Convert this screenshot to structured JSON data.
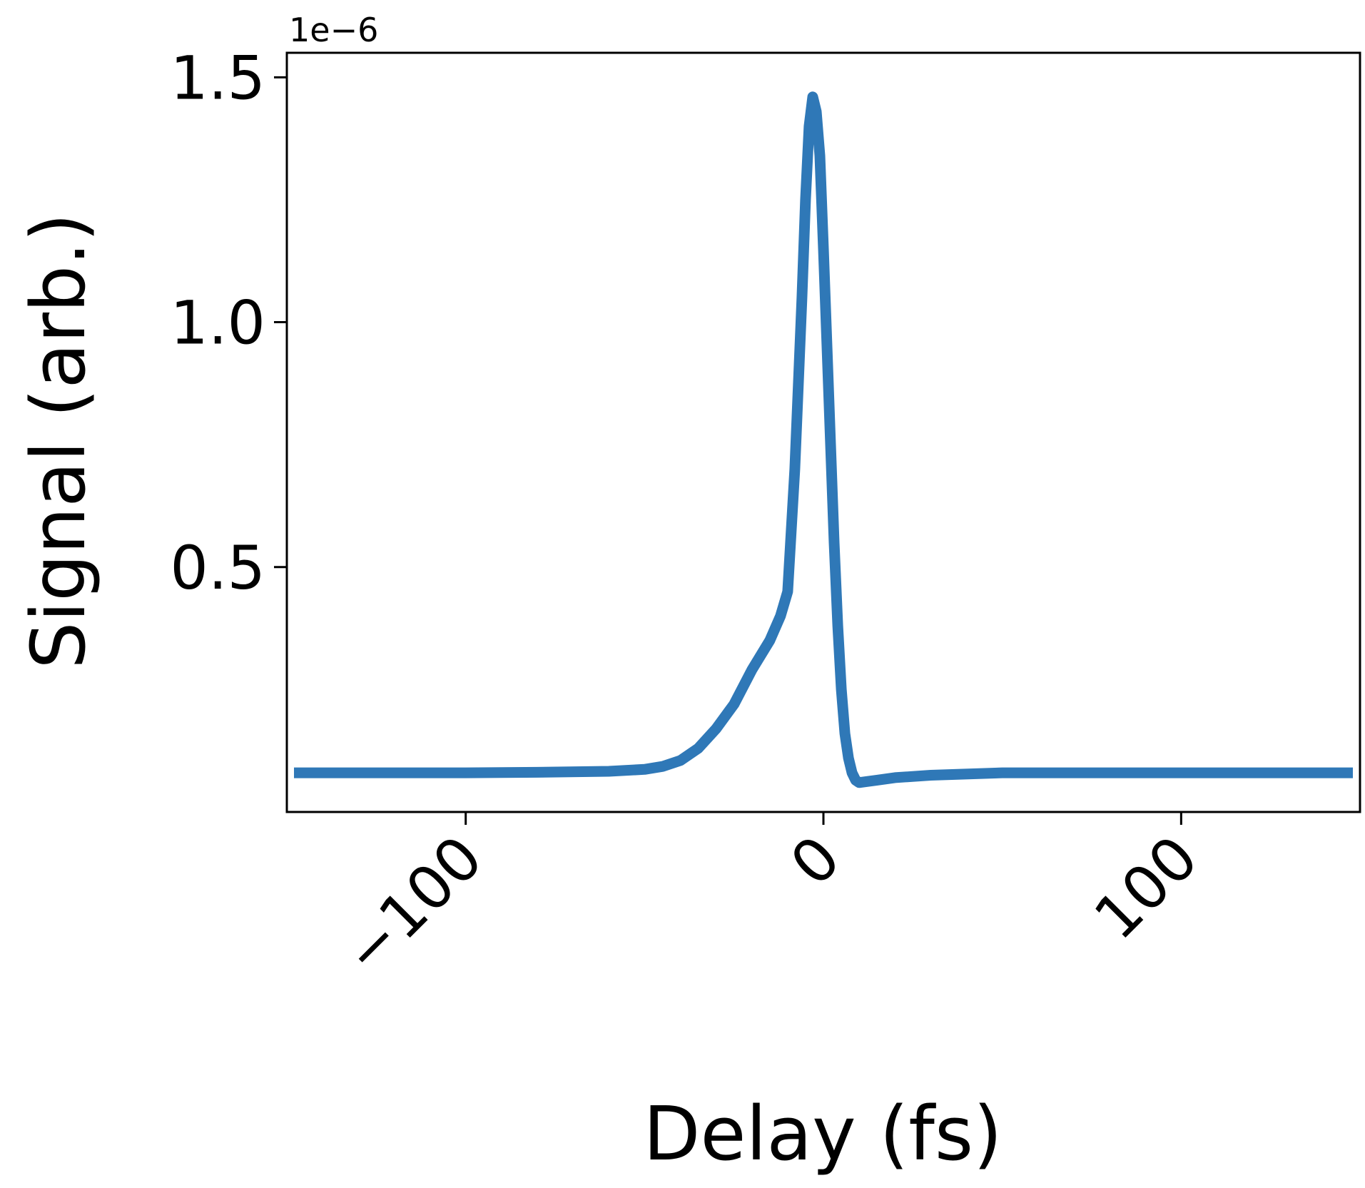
{
  "chart_data": {
    "type": "line",
    "title": "",
    "xlabel": "Delay (fs)",
    "ylabel": "Signal (arb.)",
    "y_offset_label": "1e−6",
    "xlim": [
      -150,
      150
    ],
    "ylim": [
      0.0,
      1.55
    ],
    "x_ticks": [
      -100,
      0,
      100
    ],
    "x_tick_labels": [
      "−100",
      "0",
      "100"
    ],
    "y_ticks": [
      0.5,
      1.0,
      1.5
    ],
    "y_tick_labels": [
      "0.5",
      "1.0",
      "1.5"
    ],
    "grid": false,
    "legend": "none",
    "series": [
      {
        "color": "#2f78b7",
        "x": [
          -148,
          -120,
          -100,
          -80,
          -60,
          -50,
          -45,
          -40,
          -35,
          -30,
          -25,
          -20,
          -15,
          -12,
          -10,
          -8,
          -6,
          -5,
          -4,
          -3,
          -2,
          -1,
          0,
          1,
          2,
          3,
          4,
          5,
          6,
          7,
          8,
          9,
          10,
          12,
          15,
          20,
          30,
          50,
          80,
          100,
          120,
          148
        ],
        "y": [
          0.08,
          0.08,
          0.08,
          0.081,
          0.083,
          0.087,
          0.093,
          0.105,
          0.13,
          0.17,
          0.22,
          0.29,
          0.35,
          0.4,
          0.45,
          0.7,
          1.05,
          1.25,
          1.4,
          1.46,
          1.43,
          1.34,
          1.15,
          0.95,
          0.75,
          0.55,
          0.38,
          0.25,
          0.16,
          0.11,
          0.08,
          0.065,
          0.06,
          0.062,
          0.065,
          0.07,
          0.075,
          0.08,
          0.08,
          0.08,
          0.08,
          0.08
        ]
      }
    ]
  }
}
